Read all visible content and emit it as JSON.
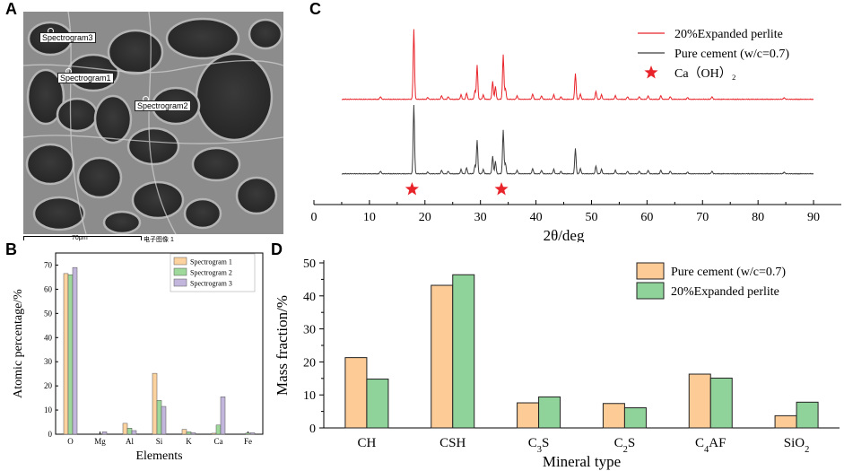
{
  "panels": {
    "a": "A",
    "b": "B",
    "c": "C",
    "d": "D"
  },
  "sem": {
    "spectrum_labels": [
      "Spectrogram3",
      "Spectrogram1",
      "Spectrogram2"
    ],
    "scale_text": "70μm",
    "caption": "电子图像 1"
  },
  "colors": {
    "s1": "#fcd29f",
    "s2": "#9ed89a",
    "s3": "#c3b6dc",
    "xrd_red": "#e8242a",
    "xrd_black": "#3c3c3c",
    "pure": "#fdcb95",
    "perlite": "#8fd39a"
  },
  "chart_data": [
    {
      "id": "B",
      "type": "bar",
      "xlabel": "Elements",
      "ylabel": "Atomic percentage/%",
      "categories": [
        "O",
        "Mg",
        "Al",
        "Si",
        "K",
        "Ca",
        "Fe"
      ],
      "ylim": [
        0,
        75
      ],
      "yticks": [
        0,
        10,
        20,
        30,
        40,
        50,
        60,
        70
      ],
      "series": [
        {
          "name": "Spectrogram 1",
          "values": [
            66.5,
            0,
            4.5,
            25.2,
            2.0,
            0.4,
            0
          ]
        },
        {
          "name": "Spectrogram 2",
          "values": [
            66,
            0,
            2.5,
            14.0,
            1.0,
            3.8,
            0.5
          ]
        },
        {
          "name": "Spectrogram 3",
          "values": [
            69,
            1.0,
            1.5,
            11.5,
            0.6,
            15.5,
            0.6
          ]
        }
      ]
    },
    {
      "id": "C",
      "type": "line",
      "xlabel": "2θ/deg",
      "xlim": [
        0,
        95
      ],
      "xticks": [
        0,
        10,
        20,
        30,
        40,
        50,
        60,
        70,
        80,
        90
      ],
      "series": [
        {
          "name": "20%Expanded perlite"
        },
        {
          "name": "Pure cement (w/c=0.7)"
        }
      ],
      "marker_legend": "Ca（OH）₂",
      "peaks": [
        [
          12.0,
          3
        ],
        [
          18.0,
          78
        ],
        [
          20.5,
          2
        ],
        [
          23.0,
          4
        ],
        [
          24.2,
          3
        ],
        [
          26.5,
          5
        ],
        [
          27.5,
          7
        ],
        [
          29.0,
          9
        ],
        [
          29.4,
          38
        ],
        [
          30.5,
          5
        ],
        [
          32.2,
          20
        ],
        [
          32.7,
          14
        ],
        [
          34.1,
          50
        ],
        [
          34.5,
          12
        ],
        [
          36.6,
          4
        ],
        [
          39.4,
          6
        ],
        [
          41.0,
          4
        ],
        [
          43.2,
          5
        ],
        [
          44.5,
          3
        ],
        [
          47.1,
          29
        ],
        [
          48.0,
          6
        ],
        [
          50.8,
          9
        ],
        [
          51.8,
          5
        ],
        [
          54.3,
          4
        ],
        [
          56.5,
          3
        ],
        [
          58.6,
          3
        ],
        [
          60.2,
          4
        ],
        [
          62.5,
          4
        ],
        [
          64.2,
          3
        ],
        [
          67.3,
          2
        ],
        [
          71.7,
          3
        ],
        [
          84.7,
          2
        ]
      ],
      "star_positions": [
        18.0,
        34.1
      ]
    },
    {
      "id": "D",
      "type": "bar",
      "xlabel": "Mineral type",
      "ylabel": "Mass fraction/%",
      "categories": [
        "CH",
        "CSH",
        "C3S",
        "C2S",
        "C4AF",
        "SiO2"
      ],
      "ylim": [
        0,
        50
      ],
      "yticks": [
        0,
        10,
        20,
        30,
        40,
        50
      ],
      "series": [
        {
          "name": "Pure cement (w/c=0.7)",
          "values": [
            21.3,
            43.2,
            7.6,
            7.4,
            16.3,
            3.7
          ]
        },
        {
          "name": "20%Expanded perlite",
          "values": [
            14.8,
            46.4,
            9.4,
            6.1,
            15.1,
            7.8
          ]
        }
      ]
    }
  ]
}
